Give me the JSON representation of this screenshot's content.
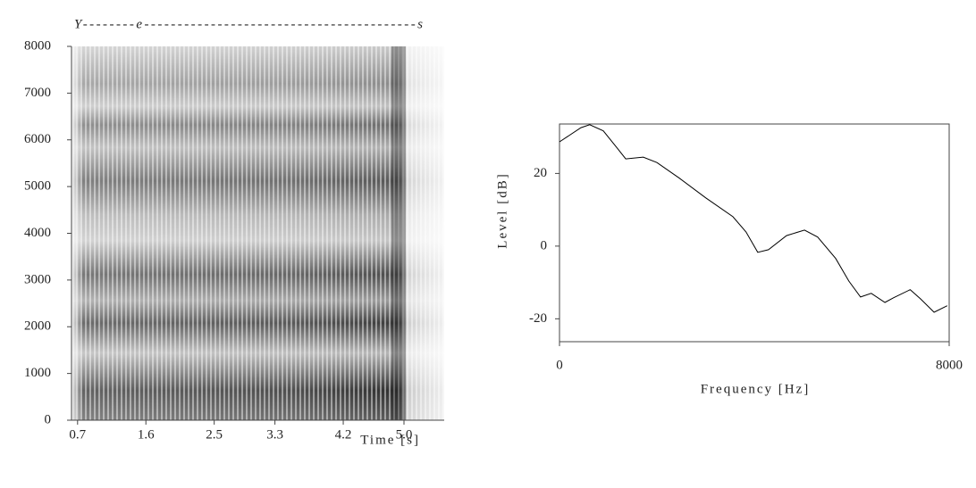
{
  "chart_data": [
    {
      "type": "spectrogram",
      "annotation": "Y--------e-----------------------------------------s",
      "x_label": "Time [s]",
      "xlim": [
        0.62,
        5.53
      ],
      "xticks": [
        0.7,
        1.6,
        2.5,
        3.3,
        4.2,
        {
          "value": 5,
          "label": "5.0"
        }
      ],
      "ylim": [
        0,
        8000
      ],
      "yticks": [
        0,
        1000,
        2000,
        3000,
        4000,
        5000,
        6000,
        7000,
        8000
      ]
    },
    {
      "type": "line",
      "x_label": "Frequency [Hz]",
      "y_label": "Level [dB]",
      "color": "#000000",
      "x": [
        0,
        440,
        620,
        900,
        1170,
        1360,
        1720,
        2000,
        2460,
        3000,
        3560,
        3830,
        4070,
        4290,
        4660,
        5030,
        5300,
        5670,
        5940,
        6180,
        6400,
        6680,
        6860,
        7200,
        7410,
        7690,
        7960
      ],
      "values": [
        28.7,
        32.6,
        33.4,
        31.7,
        27.2,
        24,
        24.5,
        23,
        18.7,
        13.3,
        8.1,
        3.9,
        -1.7,
        -1,
        2.9,
        4.4,
        2.5,
        -3.4,
        -9.6,
        -14,
        -13,
        -15.5,
        -14.2,
        -12,
        -14.5,
        -18.2,
        -16.4
      ],
      "xlim": [
        0,
        8000
      ],
      "xticks": [
        0,
        8000
      ],
      "ylim": [
        -26.3,
        33.6
      ],
      "yticks": [
        -20,
        0,
        20
      ]
    }
  ]
}
